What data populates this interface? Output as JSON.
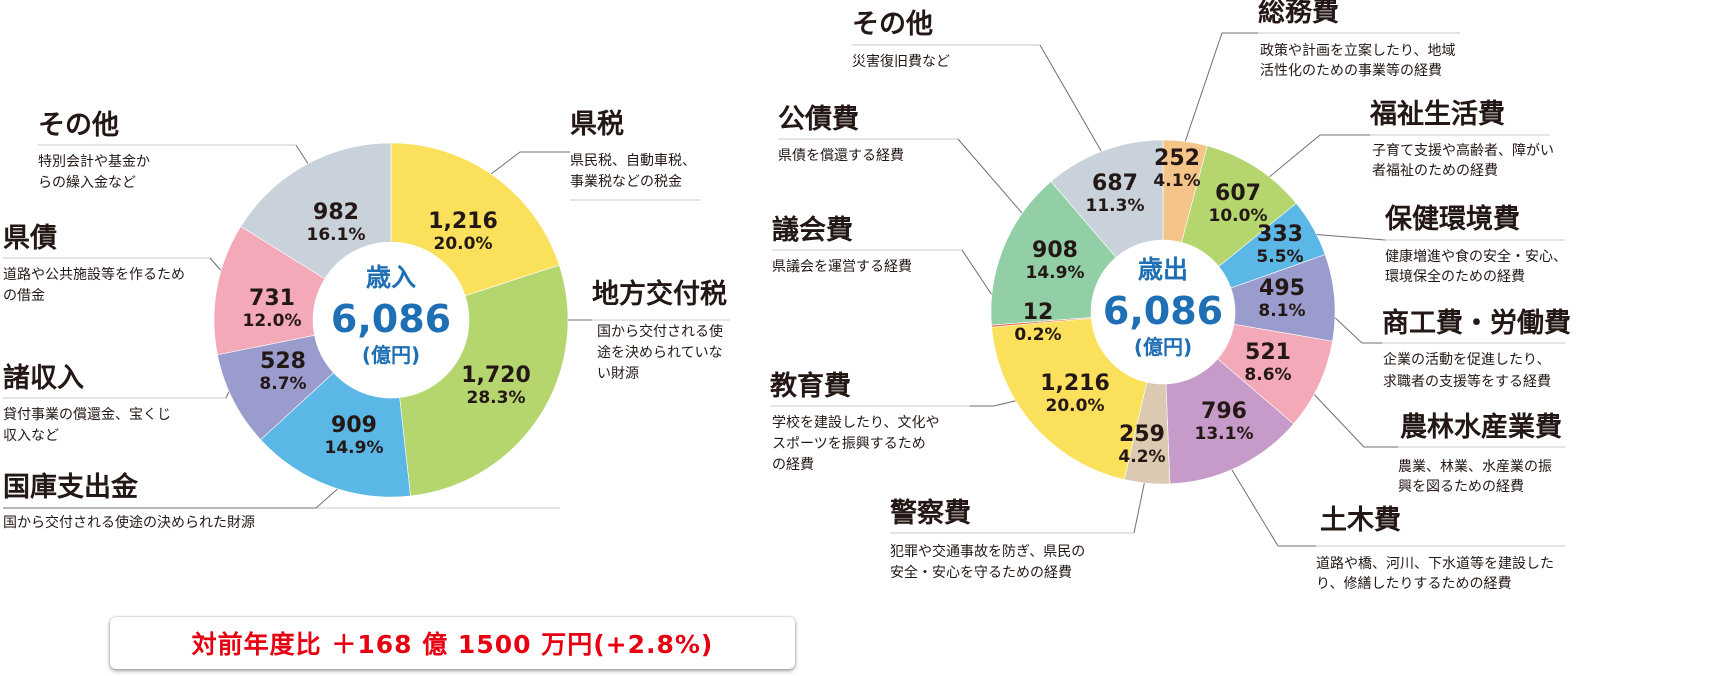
{
  "colors": {
    "accent_blue": "#1f6fb5",
    "footer_red": "#e60012",
    "leader_gray": "#6f6f6f",
    "underline_gray": "#c8c8c8"
  },
  "footer": {
    "text": "対前年度比 ＋168 億 1500 万円(+2.8%)"
  },
  "chart_data": [
    {
      "type": "pie",
      "donut": true,
      "center": {
        "title": "歳入",
        "total": "6,086",
        "unit": "(億円)"
      },
      "slices": [
        {
          "label": "県税",
          "desc_lines": [
            "県民税、自動車税、",
            "事業税などの税金"
          ],
          "value": 1216,
          "value_text": "1,216",
          "percent_text": "20.0%",
          "color": "#fbe05c"
        },
        {
          "label": "地方交付税",
          "desc_lines": [
            "国から交付される使",
            "途を決められていな",
            "い財源"
          ],
          "value": 1720,
          "value_text": "1,720",
          "percent_text": "28.3%",
          "color": "#b5d66e"
        },
        {
          "label": "国庫支出金",
          "desc_lines": [
            "国から交付される使途の決められた財源"
          ],
          "value": 909,
          "value_text": "909",
          "percent_text": "14.9%",
          "color": "#5ab7e6"
        },
        {
          "label": "諸収入",
          "desc_lines": [
            "貸付事業の償還金、宝くじ",
            "収入など"
          ],
          "value": 528,
          "value_text": "528",
          "percent_text": "8.7%",
          "color": "#9a9ccd"
        },
        {
          "label": "県債",
          "desc_lines": [
            "道路や公共施設等を作るため",
            "の借金"
          ],
          "value": 731,
          "value_text": "731",
          "percent_text": "12.0%",
          "color": "#f3a9b8"
        },
        {
          "label": "その他",
          "desc_lines": [
            "特別会計や基金か",
            "らの繰入金など"
          ],
          "value": 982,
          "value_text": "982",
          "percent_text": "16.1%",
          "color": "#c9d2da"
        }
      ]
    },
    {
      "type": "pie",
      "donut": true,
      "center": {
        "title": "歳出",
        "total": "6,086",
        "unit": "(億円)"
      },
      "slices": [
        {
          "label": "総務費",
          "desc_lines": [
            "政策や計画を立案したり、地域",
            "活性化のための事業等の経費"
          ],
          "value": 252,
          "value_text": "252",
          "percent_text": "4.1%",
          "color": "#f5c489"
        },
        {
          "label": "福祉生活費",
          "desc_lines": [
            "子育て支援や高齢者、障がい",
            "者福祉のための経費"
          ],
          "value": 607,
          "value_text": "607",
          "percent_text": "10.0%",
          "color": "#b5d66e"
        },
        {
          "label": "保健環境費",
          "desc_lines": [
            "健康増進や食の安全・安心、",
            "環境保全のための経費"
          ],
          "value": 333,
          "value_text": "333",
          "percent_text": "5.5%",
          "color": "#5ab7e6"
        },
        {
          "label": "商工費・労働費",
          "desc_lines": [
            "企業の活動を促進したり、",
            "求職者の支援等をする経費"
          ],
          "value": 495,
          "value_text": "495",
          "percent_text": "8.1%",
          "color": "#9a9ccd"
        },
        {
          "label": "農林水産業費",
          "desc_lines": [
            "農業、林業、水産業の振",
            "興を図るための経費"
          ],
          "value": 521,
          "value_text": "521",
          "percent_text": "8.6%",
          "color": "#f3a9b8"
        },
        {
          "label": "土木費",
          "desc_lines": [
            "道路や橋、河川、下水道等を建設した",
            "り、修繕したりするための経費"
          ],
          "value": 796,
          "value_text": "796",
          "percent_text": "13.1%",
          "color": "#c79bc9"
        },
        {
          "label": "警察費",
          "desc_lines": [
            "犯罪や交通事故を防ぎ、県民の",
            "安全・安心を守るための経費"
          ],
          "value": 259,
          "value_text": "259",
          "percent_text": "4.2%",
          "color": "#dcc9b2"
        },
        {
          "label": "教育費",
          "desc_lines": [
            "学校を建設したり、文化や",
            "スポーツを振興するため",
            "の経費"
          ],
          "value": 1216,
          "value_text": "1,216",
          "percent_text": "20.0%",
          "color": "#fbe05c"
        },
        {
          "label": "議会費",
          "desc_lines": [
            "県議会を運営する経費"
          ],
          "value": 12,
          "value_text": "12",
          "percent_text": "0.2%",
          "color": "#e8734a"
        },
        {
          "label": "公債費",
          "desc_lines": [
            "県債を償還する経費"
          ],
          "value": 908,
          "value_text": "908",
          "percent_text": "14.9%",
          "color": "#93cfa6"
        },
        {
          "label": "その他",
          "desc_lines": [
            "災害復旧費など"
          ],
          "value": 687,
          "value_text": "687",
          "percent_text": "11.3%",
          "color": "#c9d2da"
        }
      ]
    }
  ]
}
